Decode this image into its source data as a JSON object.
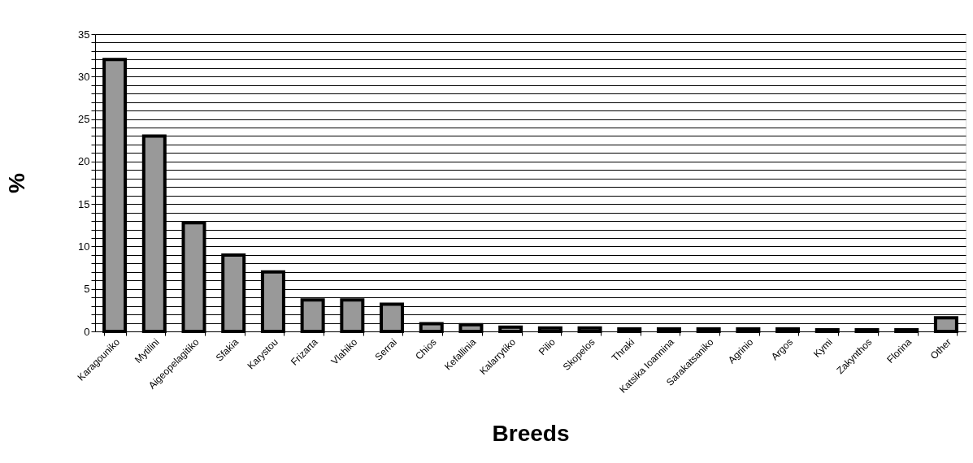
{
  "chart_data": {
    "type": "bar",
    "xlabel": "Breeds",
    "ylabel": "%",
    "categories": [
      "Karagouniko",
      "Mytilini",
      "Aigeopelagitiko",
      "Sfakia",
      "Karystou",
      "Frizarta",
      "Vlahiko",
      "Serrai",
      "Chios",
      "Kefallinia",
      "Kalarrytiko",
      "Pilio",
      "Skopelos",
      "Thraki",
      "Katsika Ioannina",
      "Sarakatsaniko",
      "Agrinio",
      "Argos",
      "Kymi",
      "Zakynthos",
      "Florina",
      "Other"
    ],
    "values": [
      32,
      23,
      12.8,
      9,
      7,
      3.7,
      3.7,
      3.2,
      0.9,
      0.8,
      0.5,
      0.4,
      0.4,
      0.3,
      0.3,
      0.3,
      0.3,
      0.3,
      0.2,
      0.2,
      0.2,
      1.6
    ],
    "color": "#999999",
    "ylim": [
      0,
      35
    ],
    "yticks": [
      0,
      {
        "value": 1,
        "label": null
      },
      {
        "value": 2,
        "label": null
      },
      {
        "value": 3,
        "label": null
      },
      {
        "value": 4,
        "label": null
      },
      5,
      {
        "value": 6,
        "label": null
      },
      {
        "value": 7,
        "label": null
      },
      {
        "value": 8,
        "label": null
      },
      {
        "value": 9,
        "label": null
      },
      10,
      {
        "value": 11,
        "label": null
      },
      {
        "value": 12,
        "label": null
      },
      {
        "value": 13,
        "label": null
      },
      {
        "value": 14,
        "label": null
      },
      15,
      {
        "value": 16,
        "label": null
      },
      {
        "value": 17,
        "label": null
      },
      {
        "value": 18,
        "label": null
      },
      {
        "value": 19,
        "label": null
      },
      20,
      {
        "value": 21,
        "label": null
      },
      {
        "value": 22,
        "label": null
      },
      {
        "value": 23,
        "label": null
      },
      {
        "value": 24,
        "label": null
      },
      25,
      {
        "value": 26,
        "label": null
      },
      {
        "value": 27,
        "label": null
      },
      {
        "value": 28,
        "label": null
      },
      {
        "value": 29,
        "label": null
      },
      30,
      {
        "value": 31,
        "label": null
      },
      {
        "value": 32,
        "label": null
      },
      {
        "value": 33,
        "label": null
      },
      {
        "value": 34,
        "label": null
      },
      35
    ],
    "grid": "y"
  }
}
